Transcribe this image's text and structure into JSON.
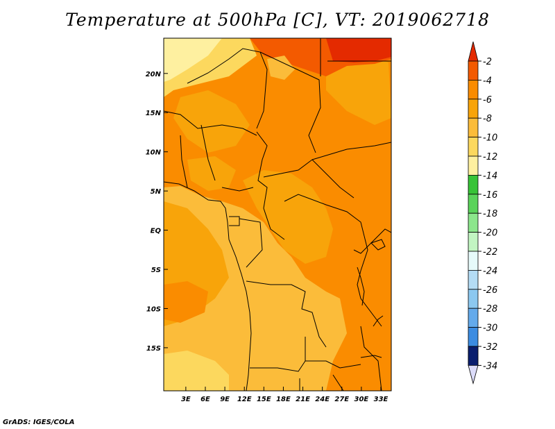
{
  "title": "Temperature at 500hPa [C], VT: 2019062718",
  "credit": "GrADS: IGES/COLA",
  "colors": {
    "deep_orange": "#fa8c00",
    "orange": "#f8a40a",
    "light_orange": "#fbbc3a",
    "pale_orange": "#fcd85e",
    "yellow": "#fef0a0",
    "red_orange": "#f35a00",
    "red": "#e42a00",
    "border": "#000000"
  },
  "map": {
    "lat_ticks": [
      {
        "label": "20N",
        "lat": 20
      },
      {
        "label": "15N",
        "lat": 15
      },
      {
        "label": "10N",
        "lat": 10
      },
      {
        "label": "5N",
        "lat": 5
      },
      {
        "label": "EQ",
        "lat": 0
      },
      {
        "label": "5S",
        "lat": -5
      },
      {
        "label": "10S",
        "lat": -10
      },
      {
        "label": "15S",
        "lat": -15
      }
    ],
    "lon_ticks": [
      {
        "label": "3E",
        "lon": 3
      },
      {
        "label": "6E",
        "lon": 6
      },
      {
        "label": "9E",
        "lon": 9
      },
      {
        "label": "12E",
        "lon": 12
      },
      {
        "label": "15E",
        "lon": 15
      },
      {
        "label": "18E",
        "lon": 18
      },
      {
        "label": "21E",
        "lon": 21
      },
      {
        "label": "24E",
        "lon": 24
      },
      {
        "label": "27E",
        "lon": 27
      },
      {
        "label": "30E",
        "lon": 30
      },
      {
        "label": "33E",
        "lon": 33
      }
    ]
  },
  "colorbar": {
    "levels": [
      {
        "label": "-2",
        "color": "#f35a00"
      },
      {
        "label": "-4",
        "color": "#fa8c00"
      },
      {
        "label": "-6",
        "color": "#f8a40a"
      },
      {
        "label": "-8",
        "color": "#fbbc3a"
      },
      {
        "label": "-10",
        "color": "#fcd85e"
      },
      {
        "label": "-12",
        "color": "#fef0a0"
      },
      {
        "label": "-14",
        "color": "#37c337"
      },
      {
        "label": "-16",
        "color": "#5ad35a"
      },
      {
        "label": "-18",
        "color": "#8ce68c"
      },
      {
        "label": "-20",
        "color": "#c2f5c2"
      },
      {
        "label": "-22",
        "color": "#e6fafa"
      },
      {
        "label": "-24",
        "color": "#b4dcf5"
      },
      {
        "label": "-26",
        "color": "#8cc8f0"
      },
      {
        "label": "-28",
        "color": "#64aaeb"
      },
      {
        "label": "-30",
        "color": "#3c8ce1"
      },
      {
        "label": "-32",
        "color": "#1e6ed2"
      },
      {
        "label": "-34",
        "color": "#1450b4"
      }
    ],
    "top_color": "#e42a00",
    "bottom_colors": [
      "#0a1e6e",
      "#dcdcfa"
    ]
  }
}
